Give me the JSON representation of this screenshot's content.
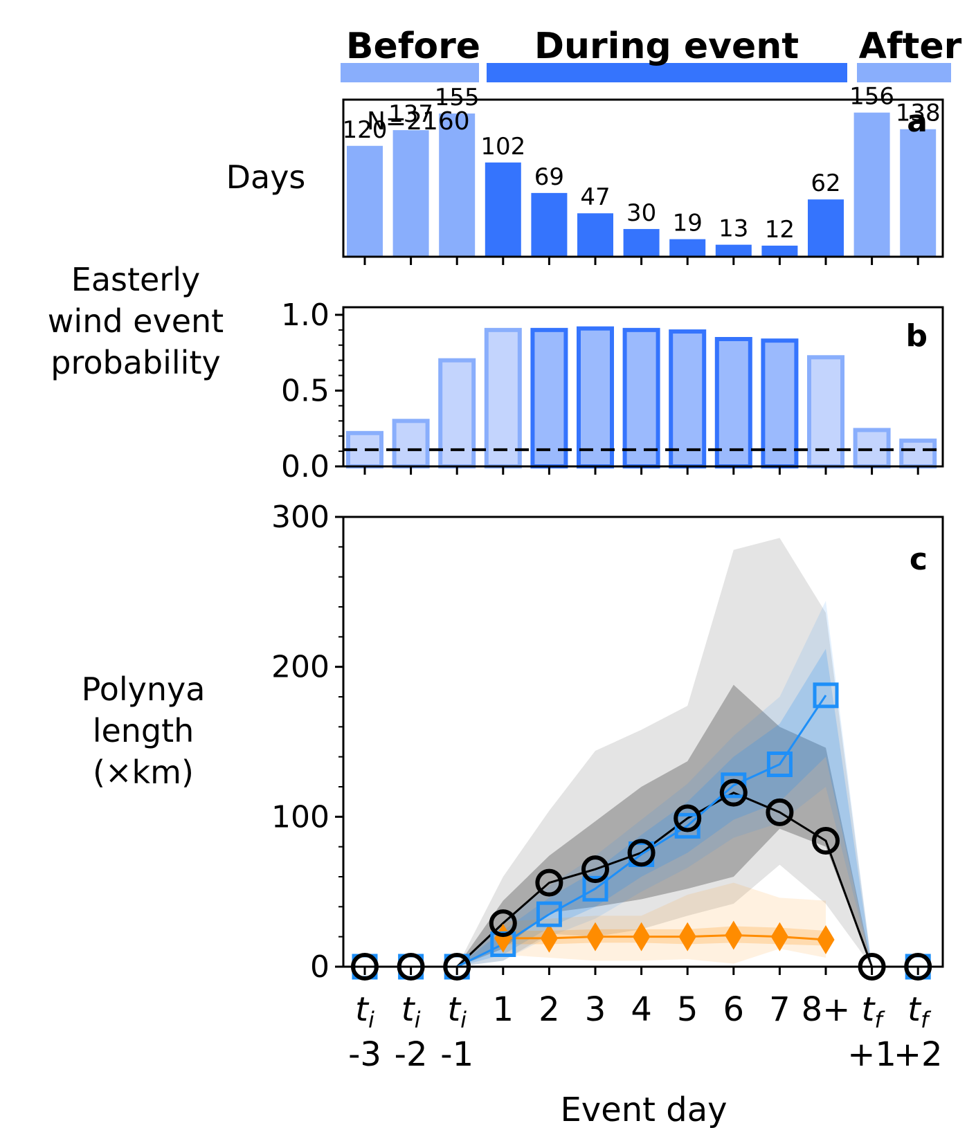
{
  "header": {
    "before_label": "Before",
    "during_label": "During event",
    "after_label": "After",
    "before_color": "#89aefc",
    "during_color": "#3574fd"
  },
  "x_axis": {
    "xlabel": "Event day",
    "ticks": [
      {
        "main": "t",
        "sub": "i",
        "line2": "-3"
      },
      {
        "main": "t",
        "sub": "i",
        "line2": "-2"
      },
      {
        "main": "t",
        "sub": "i",
        "line2": "-1"
      },
      {
        "main": "1",
        "sub": "",
        "line2": ""
      },
      {
        "main": "2",
        "sub": "",
        "line2": ""
      },
      {
        "main": "3",
        "sub": "",
        "line2": ""
      },
      {
        "main": "4",
        "sub": "",
        "line2": ""
      },
      {
        "main": "5",
        "sub": "",
        "line2": ""
      },
      {
        "main": "6",
        "sub": "",
        "line2": ""
      },
      {
        "main": "7",
        "sub": "",
        "line2": ""
      },
      {
        "main": "8+",
        "sub": "",
        "line2": ""
      },
      {
        "main": "t",
        "sub": "f",
        "line2": "+1"
      },
      {
        "main": "t",
        "sub": "f",
        "line2": "+2"
      }
    ]
  },
  "chart_data": [
    {
      "panel": "a",
      "type": "bar",
      "ylabel": "Days",
      "annotation": "N=2160",
      "categories": [
        "ti-3",
        "ti-2",
        "ti-1",
        "1",
        "2",
        "3",
        "4",
        "5",
        "6",
        "7",
        "8+",
        "tf+1",
        "tf+2"
      ],
      "values": [
        120,
        137,
        155,
        102,
        69,
        47,
        30,
        19,
        13,
        12,
        62,
        156,
        138
      ],
      "phase": [
        "before",
        "before",
        "before",
        "during",
        "during",
        "during",
        "during",
        "during",
        "during",
        "during",
        "during",
        "after",
        "after"
      ],
      "ylim": [
        0,
        170
      ]
    },
    {
      "panel": "b",
      "type": "bar",
      "ylabel": "Easterly wind event probability",
      "categories": [
        "ti-3",
        "ti-2",
        "ti-1",
        "1",
        "2",
        "3",
        "4",
        "5",
        "6",
        "7",
        "8+",
        "tf+1",
        "tf+2"
      ],
      "values": [
        0.22,
        0.3,
        0.7,
        0.9,
        0.9,
        0.91,
        0.9,
        0.89,
        0.84,
        0.83,
        0.72,
        0.24,
        0.17
      ],
      "shade": [
        "light",
        "light",
        "light",
        "light",
        "mid",
        "mid",
        "mid",
        "mid",
        "dark",
        "dark",
        "light",
        "light",
        "light"
      ],
      "baseline": 0.11,
      "ylim": [
        0,
        1.05
      ],
      "yticks": [
        "0.0",
        "0.5",
        "1.0"
      ]
    },
    {
      "panel": "c",
      "type": "line",
      "ylabel": "Polynya length (×km)",
      "ylim": [
        0,
        300
      ],
      "yticks": [
        "0",
        "100",
        "200",
        "300"
      ],
      "x": [
        "ti-3",
        "ti-2",
        "ti-1",
        "1",
        "2",
        "3",
        "4",
        "5",
        "6",
        "7",
        "8+",
        "tf+1",
        "tf+2"
      ],
      "series": [
        {
          "color": "#000000",
          "marker": "circle",
          "values": [
            0,
            0,
            0,
            29,
            56,
            65,
            76,
            99,
            116,
            103,
            84,
            0,
            0
          ],
          "band_inner": [
            [
              0,
              0
            ],
            [
              0,
              0
            ],
            [
              0,
              0
            ],
            [
              12,
              44
            ],
            [
              36,
              74
            ],
            [
              40,
              97
            ],
            [
              45,
              120
            ],
            [
              52,
              137
            ],
            [
              60,
              188
            ],
            [
              92,
              160
            ],
            [
              80,
              146
            ],
            [
              0,
              0
            ],
            [
              0,
              0
            ]
          ],
          "band_outer": [
            [
              0,
              0
            ],
            [
              0,
              0
            ],
            [
              0,
              0
            ],
            [
              4,
              60
            ],
            [
              22,
              104
            ],
            [
              20,
              144
            ],
            [
              25,
              158
            ],
            [
              34,
              174
            ],
            [
              42,
              278
            ],
            [
              68,
              286
            ],
            [
              42,
              236
            ],
            [
              0,
              0
            ],
            [
              0,
              0
            ]
          ]
        },
        {
          "color": "#1e8ff8",
          "marker": "square",
          "values": [
            0,
            0,
            0,
            15,
            35,
            52,
            75,
            94,
            121,
            135,
            181,
            null,
            0
          ],
          "band_inner": [
            [
              0,
              0
            ],
            [
              0,
              0
            ],
            [
              0,
              0
            ],
            [
              8,
              24
            ],
            [
              26,
              46
            ],
            [
              40,
              64
            ],
            [
              60,
              88
            ],
            [
              76,
              110
            ],
            [
              98,
              140
            ],
            [
              110,
              162
            ],
            [
              140,
              212
            ],
            [
              0,
              0
            ],
            [
              0,
              0
            ]
          ],
          "band_outer": [
            [
              0,
              0
            ],
            [
              0,
              0
            ],
            [
              0,
              0
            ],
            [
              4,
              30
            ],
            [
              20,
              54
            ],
            [
              32,
              74
            ],
            [
              50,
              98
            ],
            [
              66,
              122
            ],
            [
              86,
              154
            ],
            [
              96,
              180
            ],
            [
              120,
              244
            ],
            [
              0,
              0
            ],
            [
              0,
              0
            ]
          ]
        },
        {
          "color": "#ff8c00",
          "marker": "diamond",
          "values": [
            null,
            null,
            null,
            19,
            19,
            20,
            20,
            20,
            21,
            20,
            18,
            null,
            null
          ],
          "band_inner": [
            [
              0,
              0
            ],
            [
              0,
              0
            ],
            [
              0,
              0
            ],
            [
              15,
              24
            ],
            [
              15,
              24
            ],
            [
              16,
              25
            ],
            [
              16,
              25
            ],
            [
              15,
              25
            ],
            [
              16,
              27
            ],
            [
              15,
              26
            ],
            [
              14,
              24
            ],
            [
              0,
              0
            ],
            [
              0,
              0
            ]
          ],
          "band_outer": [
            [
              0,
              0
            ],
            [
              0,
              0
            ],
            [
              0,
              0
            ],
            [
              8,
              30
            ],
            [
              6,
              32
            ],
            [
              4,
              34
            ],
            [
              4,
              34
            ],
            [
              5,
              48
            ],
            [
              2,
              56
            ],
            [
              12,
              46
            ],
            [
              6,
              44
            ],
            [
              0,
              0
            ],
            [
              0,
              0
            ]
          ]
        }
      ]
    }
  ]
}
